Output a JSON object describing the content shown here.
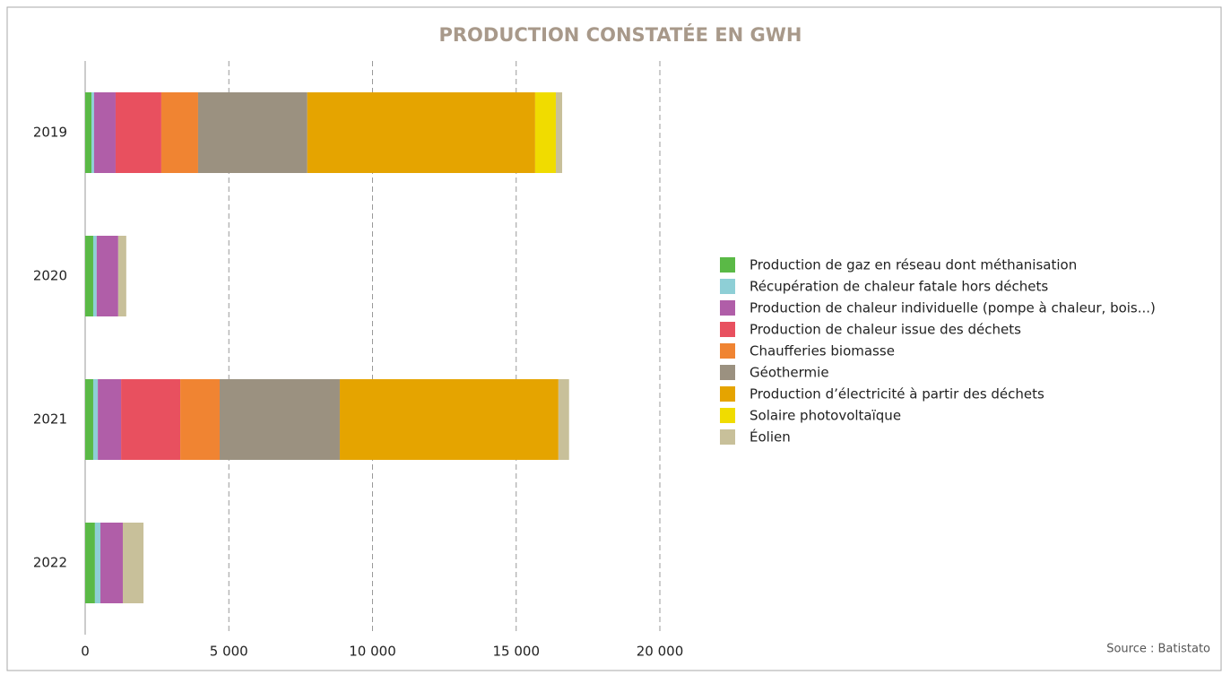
{
  "chart_data": {
    "type": "stacked_barh",
    "title": "PRODUCTION CONSTATÉE EN GWH",
    "categories": [
      "2019",
      "2020",
      "2021",
      "2022"
    ],
    "series": [
      {
        "name": "Production de gaz en réseau dont méthanisation",
        "color": "#5ab946",
        "values": [
          220,
          280,
          280,
          340
        ]
      },
      {
        "name": "Récupération de chaleur fatale hors déchets",
        "color": "#8ecfd6",
        "values": [
          90,
          120,
          160,
          190
        ]
      },
      {
        "name": "Production de chaleur individuelle (pompe à chaleur, bois...)",
        "color": "#b05ea8",
        "values": [
          750,
          750,
          810,
          780
        ]
      },
      {
        "name": "Production de chaleur issue des déchets",
        "color": "#e8505f",
        "values": [
          1590,
          0,
          2060,
          0
        ]
      },
      {
        "name": "Chaufferies biomasse",
        "color": "#f08432",
        "values": [
          1280,
          0,
          1370,
          0
        ]
      },
      {
        "name": "Géothermie",
        "color": "#9b9180",
        "values": [
          3800,
          0,
          4180,
          0
        ]
      },
      {
        "name": "Production d’électricité à partir des déchets",
        "color": "#e5a400",
        "values": [
          7930,
          0,
          7610,
          0
        ]
      },
      {
        "name": "Solaire photovoltaïque",
        "color": "#f0dc00",
        "values": [
          720,
          0,
          0,
          0
        ]
      },
      {
        "name": "Éolien",
        "color": "#c8c09a",
        "values": [
          220,
          280,
          370,
          720
        ]
      }
    ],
    "xlim": [
      0,
      20000
    ],
    "xticks": [
      0,
      {
        "value": 5000,
        "label": "5 000"
      },
      {
        "value": 10000,
        "label": "10 000"
      },
      {
        "value": 15000,
        "label": "15 000"
      },
      {
        "value": 20000,
        "label": "20 000"
      }
    ],
    "grid": true,
    "legend": "right",
    "source": "Source : Batistato"
  }
}
